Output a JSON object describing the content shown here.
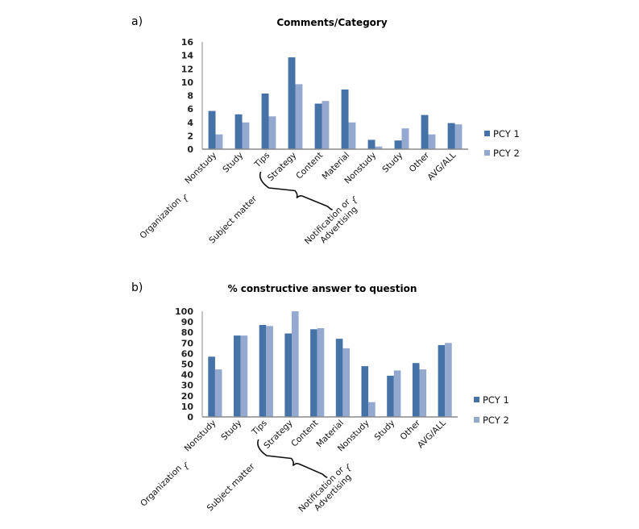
{
  "chart_data": [
    {
      "panel_label": "a)",
      "type": "bar",
      "title": "Comments/Category",
      "xlabel": "",
      "ylabel": "",
      "ylim": [
        0,
        16
      ],
      "yticks": [
        0,
        2,
        4,
        6,
        8,
        10,
        12,
        14,
        16
      ],
      "grid": false,
      "legend_position": "right",
      "categories": [
        "Nonstudy",
        "Study",
        "Tips",
        "Strategy",
        "Content",
        "Material",
        "Nonstudy",
        "Study",
        "Other",
        "AVG/ALL"
      ],
      "category_groups": [
        {
          "label": "Organization",
          "members": [
            0,
            1
          ]
        },
        {
          "label": "Subject matter",
          "members": [
            2,
            3,
            4,
            5
          ]
        },
        {
          "label": "Notification or Advertising",
          "members": [
            6,
            7
          ]
        }
      ],
      "series": [
        {
          "name": "PCY 1",
          "color": "#4572a7",
          "values": [
            5.7,
            5.2,
            8.3,
            13.7,
            6.8,
            8.9,
            1.4,
            1.3,
            5.1,
            3.9
          ]
        },
        {
          "name": "PCY 2",
          "color": "#93a9cf",
          "values": [
            2.2,
            4.0,
            4.9,
            9.7,
            7.2,
            4.0,
            0.4,
            3.1,
            2.2,
            3.7
          ]
        }
      ]
    },
    {
      "panel_label": "b)",
      "type": "bar",
      "title": "% constructive answer to question",
      "xlabel": "",
      "ylabel": "",
      "ylim": [
        0,
        100
      ],
      "yticks": [
        0,
        10,
        20,
        30,
        40,
        50,
        60,
        70,
        80,
        90,
        100
      ],
      "grid": false,
      "legend_position": "right",
      "categories": [
        "Nonstudy",
        "Study",
        "Tips",
        "Strategy",
        "Content",
        "Material",
        "Nonstudy",
        "Study",
        "Other",
        "AVG/ALL"
      ],
      "category_groups": [
        {
          "label": "Organization",
          "members": [
            0,
            1
          ]
        },
        {
          "label": "Subject matter",
          "members": [
            2,
            3,
            4,
            5
          ]
        },
        {
          "label": "Notification or Advertising",
          "members": [
            6,
            7
          ]
        }
      ],
      "series": [
        {
          "name": "PCY 1",
          "color": "#4572a7",
          "values": [
            57,
            77,
            87,
            79,
            83,
            74,
            48,
            39,
            51,
            68
          ]
        },
        {
          "name": "PCY 2",
          "color": "#93a9cf",
          "values": [
            45,
            77,
            86,
            100,
            84,
            65,
            14,
            44,
            45,
            70
          ]
        }
      ]
    }
  ],
  "group_label_lines": {
    "notification": [
      "Notification or",
      "Advertising"
    ]
  }
}
